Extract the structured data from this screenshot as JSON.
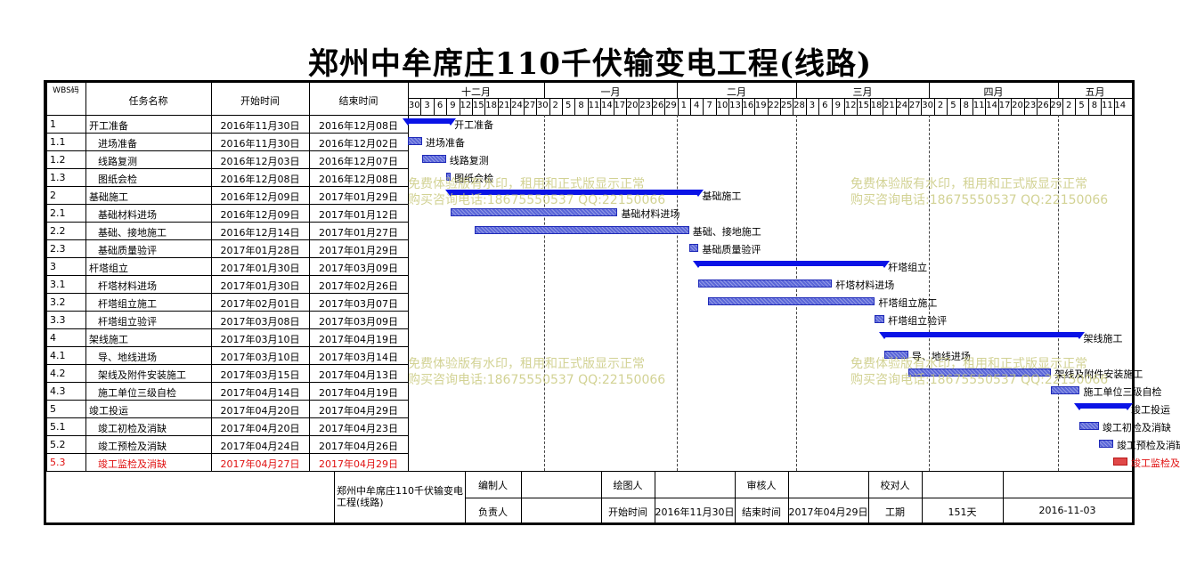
{
  "title": "郑州中牟席庄110千伏输变电工程(线路)",
  "headers": {
    "wbs": "WBS码",
    "name": "任务名称",
    "start": "开始时间",
    "end": "结束时间"
  },
  "months": [
    "十二月",
    "一月",
    "二月",
    "三月",
    "四月",
    "五月"
  ],
  "days": [
    "30",
    "3",
    "6",
    "9",
    "12",
    "15",
    "18",
    "21",
    "24",
    "27",
    "30",
    "2",
    "5",
    "8",
    "11",
    "14",
    "17",
    "20",
    "23",
    "26",
    "29",
    "1",
    "4",
    "7",
    "10",
    "13",
    "16",
    "19",
    "22",
    "25",
    "28",
    "3",
    "6",
    "9",
    "12",
    "15",
    "18",
    "21",
    "24",
    "27",
    "30",
    "2",
    "5",
    "8",
    "11",
    "14",
    "17",
    "20",
    "23",
    "26",
    "29",
    "2",
    "5",
    "8",
    "11",
    "14"
  ],
  "tasks": [
    {
      "wbs": "1",
      "name": "开工准备",
      "start": "2016年11月30日",
      "end": "2016年12月08日",
      "label": "开工准备"
    },
    {
      "wbs": "1.1",
      "name": "进场准备",
      "start": "2016年11月30日",
      "end": "2016年12月02日",
      "label": "进场准备"
    },
    {
      "wbs": "1.2",
      "name": "线路复测",
      "start": "2016年12月03日",
      "end": "2016年12月07日",
      "label": "线路复测"
    },
    {
      "wbs": "1.3",
      "name": "图纸会检",
      "start": "2016年12月08日",
      "end": "2016年12月08日",
      "label": "图纸会检"
    },
    {
      "wbs": "2",
      "name": "基础施工",
      "start": "2016年12月09日",
      "end": "2017年01月29日",
      "label": "基础施工"
    },
    {
      "wbs": "2.1",
      "name": "基础材料进场",
      "start": "2016年12月09日",
      "end": "2017年01月12日",
      "label": "基础材料进场"
    },
    {
      "wbs": "2.2",
      "name": "基础、接地施工",
      "start": "2016年12月14日",
      "end": "2017年01月27日",
      "label": "基础、接地施工"
    },
    {
      "wbs": "2.3",
      "name": "基础质量验评",
      "start": "2017年01月28日",
      "end": "2017年01月29日",
      "label": "基础质量验评"
    },
    {
      "wbs": "3",
      "name": "杆塔组立",
      "start": "2017年01月30日",
      "end": "2017年03月09日",
      "label": "杆塔组立"
    },
    {
      "wbs": "3.1",
      "name": "杆塔材料进场",
      "start": "2017年01月30日",
      "end": "2017年02月26日",
      "label": "杆塔材料进场"
    },
    {
      "wbs": "3.2",
      "name": "杆塔组立施工",
      "start": "2017年02月01日",
      "end": "2017年03月07日",
      "label": "杆塔组立施工"
    },
    {
      "wbs": "3.3",
      "name": "杆塔组立验评",
      "start": "2017年03月08日",
      "end": "2017年03月09日",
      "label": "杆塔组立验评"
    },
    {
      "wbs": "4",
      "name": "架线施工",
      "start": "2017年03月10日",
      "end": "2017年04月19日",
      "label": "架线施工"
    },
    {
      "wbs": "4.1",
      "name": "导、地线进场",
      "start": "2017年03月10日",
      "end": "2017年03月14日",
      "label": "导、地线进场"
    },
    {
      "wbs": "4.2",
      "name": "架线及附件安装施工",
      "start": "2017年03月15日",
      "end": "2017年04月13日",
      "label": "架线及附件安装施工"
    },
    {
      "wbs": "4.3",
      "name": "施工单位三级自检",
      "start": "2017年04月14日",
      "end": "2017年04月19日",
      "label": "施工单位三级自检"
    },
    {
      "wbs": "5",
      "name": "竣工投运",
      "start": "2017年04月20日",
      "end": "2017年04月29日",
      "label": "竣工投运"
    },
    {
      "wbs": "5.1",
      "name": "竣工初检及消缺",
      "start": "2017年04月20日",
      "end": "2017年04月23日",
      "label": "竣工初检及消缺"
    },
    {
      "wbs": "5.2",
      "name": "竣工预检及消缺",
      "start": "2017年04月24日",
      "end": "2017年04月26日",
      "label": "竣工预检及消缺"
    },
    {
      "wbs": "5.3",
      "name": "竣工监检及消缺",
      "start": "2017年04月27日",
      "end": "2017年04月29日",
      "label": "竣工监检及消缺"
    }
  ],
  "footer": {
    "project": "郑州中牟席庄110千伏输变电工程(线路)",
    "editor_label": "编制人",
    "drawer_label": "绘图人",
    "reviewer_label": "审核人",
    "proofer_label": "校对人",
    "owner_label": "负责人",
    "start_label": "开始时间",
    "start_value": "2016年11月30日",
    "end_label": "结束时间",
    "end_value": "2017年04月29日",
    "duration_label": "工期",
    "duration_value": "151天",
    "date_value": "2016-11-03"
  },
  "watermark": {
    "line1": "免费体验版有水印，租用和正式版显示正常",
    "line2": "购买咨询电话:18675550537 QQ:22150066"
  },
  "colors": {
    "summary_bar": "#0a13e6",
    "task_bar": "#5a66d8",
    "critical_bar": "#e04848",
    "critical_text": "#e01010"
  }
}
